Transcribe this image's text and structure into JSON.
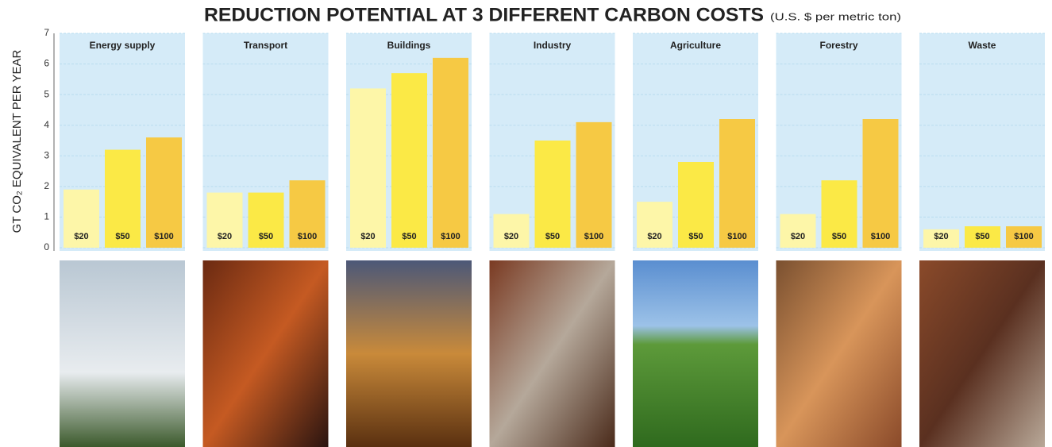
{
  "title": "REDUCTION POTENTIAL AT 3 DIFFERENT CARBON COSTS",
  "subtitle": "(U.S. $ per metric ton)",
  "y_label": "GT CO₂ EQUIVALENT PER YEAR",
  "chart_data": [
    {
      "type": "bar",
      "title": "Energy supply",
      "categories": [
        "$20",
        "$50",
        "$100"
      ],
      "values": [
        1.9,
        3.2,
        3.6
      ],
      "colors": [
        "#fdf6a8",
        "#fbe946",
        "#f6c944"
      ],
      "ylim": [
        0,
        7
      ],
      "yticks": [
        0,
        1,
        2,
        3,
        4,
        5,
        6,
        7
      ],
      "grid": true
    },
    {
      "type": "bar",
      "title": "Transport",
      "categories": [
        "$20",
        "$50",
        "$100"
      ],
      "values": [
        1.8,
        1.8,
        2.2
      ],
      "colors": [
        "#fdf6a8",
        "#fbe946",
        "#f6c944"
      ],
      "ylim": [
        0,
        7
      ],
      "yticks": [
        0,
        1,
        2,
        3,
        4,
        5,
        6,
        7
      ],
      "grid": true
    },
    {
      "type": "bar",
      "title": "Buildings",
      "categories": [
        "$20",
        "$50",
        "$100"
      ],
      "values": [
        5.2,
        5.7,
        6.2
      ],
      "colors": [
        "#fdf6a8",
        "#fbe946",
        "#f6c944"
      ],
      "ylim": [
        0,
        7
      ],
      "yticks": [
        0,
        1,
        2,
        3,
        4,
        5,
        6,
        7
      ],
      "grid": true
    },
    {
      "type": "bar",
      "title": "Industry",
      "categories": [
        "$20",
        "$50",
        "$100"
      ],
      "values": [
        1.1,
        3.5,
        4.1
      ],
      "colors": [
        "#fdf6a8",
        "#fbe946",
        "#f6c944"
      ],
      "ylim": [
        0,
        7
      ],
      "yticks": [
        0,
        1,
        2,
        3,
        4,
        5,
        6,
        7
      ],
      "grid": true
    },
    {
      "type": "bar",
      "title": "Agriculture",
      "categories": [
        "$20",
        "$50",
        "$100"
      ],
      "values": [
        1.5,
        2.8,
        4.2
      ],
      "colors": [
        "#fdf6a8",
        "#fbe946",
        "#f6c944"
      ],
      "ylim": [
        0,
        7
      ],
      "yticks": [
        0,
        1,
        2,
        3,
        4,
        5,
        6,
        7
      ],
      "grid": true
    },
    {
      "type": "bar",
      "title": "Forestry",
      "categories": [
        "$20",
        "$50",
        "$100"
      ],
      "values": [
        1.1,
        2.2,
        4.2
      ],
      "colors": [
        "#fdf6a8",
        "#fbe946",
        "#f6c944"
      ],
      "ylim": [
        0,
        7
      ],
      "yticks": [
        0,
        1,
        2,
        3,
        4,
        5,
        6,
        7
      ],
      "grid": true
    },
    {
      "type": "bar",
      "title": "Waste",
      "categories": [
        "$20",
        "$50",
        "$100"
      ],
      "values": [
        0.6,
        0.7,
        0.7
      ],
      "colors": [
        "#fdf6a8",
        "#fbe946",
        "#f6c944"
      ],
      "ylim": [
        0,
        7
      ],
      "yticks": [
        0,
        1,
        2,
        3,
        4,
        5,
        6,
        7
      ],
      "grid": true
    }
  ]
}
